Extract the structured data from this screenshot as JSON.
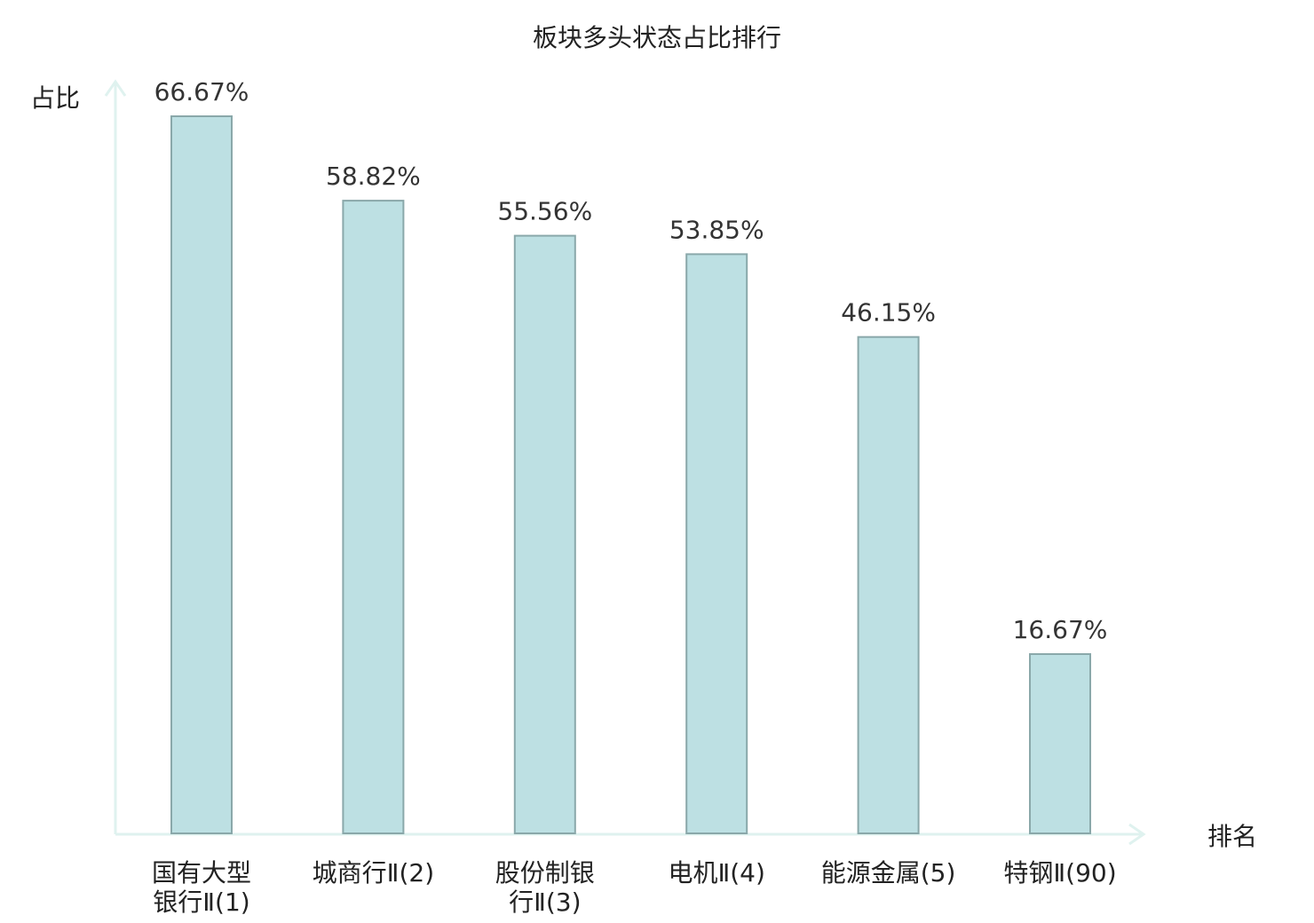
{
  "chart_data": {
    "type": "bar",
    "title": "板块多头状态占比排行",
    "xlabel": "排名",
    "ylabel": "占比",
    "ylim": [
      0,
      70
    ],
    "grid": false,
    "legend": "none",
    "categories": [
      [
        "国有大型",
        "银行Ⅱ(1)"
      ],
      [
        "城商行Ⅱ(2)"
      ],
      [
        "股份制银",
        "行Ⅱ(3)"
      ],
      [
        "电机Ⅱ(4)"
      ],
      [
        "能源金属(5)"
      ],
      [
        "特钢Ⅱ(90)"
      ]
    ],
    "values": [
      66.67,
      58.82,
      55.56,
      53.85,
      46.15,
      16.67
    ],
    "value_labels": [
      "66.67%",
      "58.82%",
      "55.56%",
      "53.85%",
      "46.15%",
      "16.67%"
    ],
    "highlight_index": 5,
    "colors": {
      "bar_fill": "#bde0e3",
      "bar_stroke": "#8aa8aa",
      "axis": "#dff2ef",
      "highlight_text": "#e00000",
      "text": "#222222"
    }
  }
}
